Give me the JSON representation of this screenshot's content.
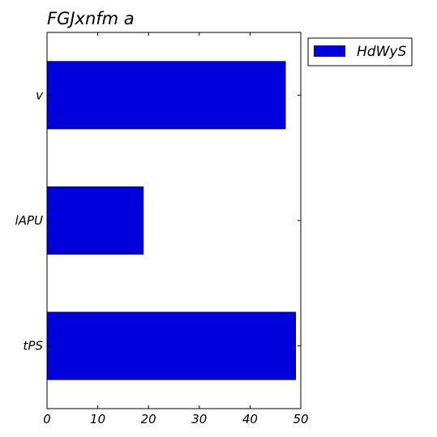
{
  "chart_data": {
    "type": "bar",
    "orientation": "horizontal",
    "title": "FGJxnfm a",
    "xlabel": "",
    "ylabel": "",
    "categories": [
      "v",
      "lAPU",
      "tPS"
    ],
    "series": [
      {
        "name": "HdWyS",
        "values": [
          47,
          19,
          49
        ],
        "color": "#0000dd"
      }
    ],
    "xlim": [
      0,
      50
    ],
    "xticks": [
      0,
      10,
      20,
      30,
      40,
      50
    ],
    "grid": false,
    "legend": "outside-top-right"
  }
}
